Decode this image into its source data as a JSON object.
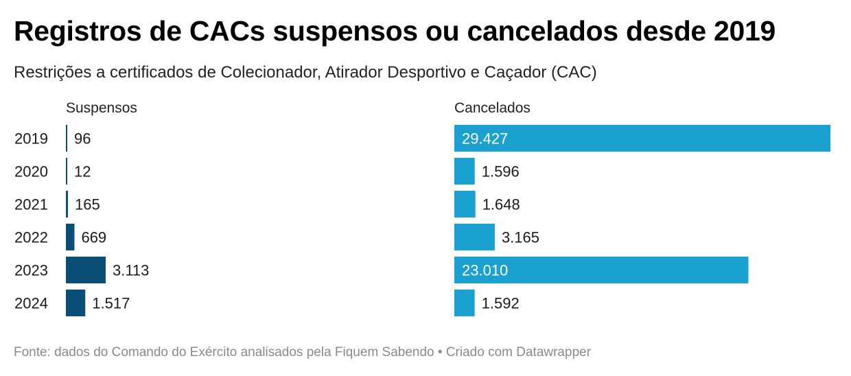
{
  "title": "Registros de CACs suspensos ou cancelados desde 2019",
  "subtitle": "Restrições a certificados de Colecionador, Atirador Desportivo e Caçador (CAC)",
  "footer": "Fonte: dados do Comando do Exército analisados pela Fiquem Sabendo • Criado com Datawrapper",
  "colors": {
    "suspensos": "#0b4f79",
    "cancelados": "#1aa1d0",
    "label_inside": "#ffffff",
    "label_outside": "#1a1a1a"
  },
  "chart_data": {
    "type": "bar",
    "orientation": "horizontal",
    "categories": [
      "2019",
      "2020",
      "2021",
      "2022",
      "2023",
      "2024"
    ],
    "series": [
      {
        "name": "Suspensos",
        "values": [
          96,
          12,
          165,
          669,
          3113,
          1517
        ],
        "labels": [
          "96",
          "12",
          "165",
          "669",
          "3.113",
          "1.517"
        ]
      },
      {
        "name": "Cancelados",
        "values": [
          29427,
          1596,
          1648,
          3165,
          23010,
          1592
        ],
        "labels": [
          "29.427",
          "1.596",
          "1.648",
          "3.165",
          "23.010",
          "1.592"
        ]
      }
    ],
    "xlim": [
      0,
      29427
    ],
    "grid": false,
    "legend": "none"
  }
}
